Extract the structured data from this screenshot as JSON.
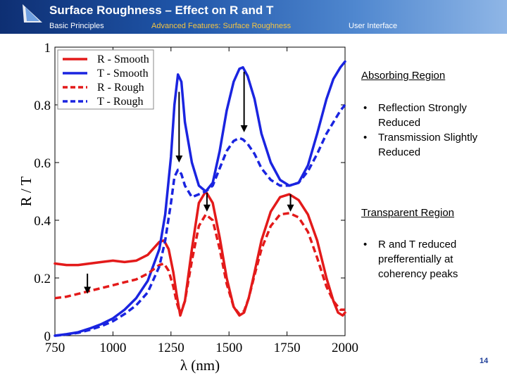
{
  "header": {
    "title": "Surface Roughness – Effect on R and T",
    "nav": [
      "Basic Principles",
      "Advanced Features: Surface Roughness",
      "User Interface"
    ]
  },
  "colors": {
    "red": "#e31a1a",
    "blue": "#1a24e0",
    "black": "#000000"
  },
  "chart_data": {
    "type": "line",
    "xlabel": "λ (nm)",
    "ylabel": "R / T",
    "xlim": [
      750,
      2000
    ],
    "ylim": [
      0,
      1
    ],
    "xticks": [
      "750",
      "1000",
      "1250",
      "1500",
      "1750",
      "2000"
    ],
    "yticks": [
      "0",
      "0.2",
      "0.4",
      "0.6",
      "0.8",
      "1"
    ],
    "legend": [
      {
        "label": "R - Smooth",
        "color": "#e31a1a",
        "dashed": false
      },
      {
        "label": "T - Smooth",
        "color": "#1a24e0",
        "dashed": false
      },
      {
        "label": "R - Rough",
        "color": "#e31a1a",
        "dashed": true
      },
      {
        "label": "T - Rough",
        "color": "#1a24e0",
        "dashed": true
      }
    ],
    "series": [
      {
        "name": "R - Smooth",
        "color": "#e31a1a",
        "dashed": false,
        "x": [
          750,
          800,
          850,
          900,
          950,
          1000,
          1050,
          1100,
          1150,
          1200,
          1220,
          1240,
          1260,
          1275,
          1290,
          1310,
          1340,
          1370,
          1400,
          1430,
          1460,
          1490,
          1520,
          1545,
          1565,
          1585,
          1610,
          1640,
          1680,
          1720,
          1760,
          1800,
          1840,
          1880,
          1920,
          1950,
          1970,
          1990,
          2000
        ],
        "y": [
          0.25,
          0.245,
          0.245,
          0.25,
          0.255,
          0.26,
          0.255,
          0.26,
          0.28,
          0.325,
          0.33,
          0.3,
          0.22,
          0.14,
          0.07,
          0.12,
          0.3,
          0.46,
          0.5,
          0.46,
          0.34,
          0.2,
          0.1,
          0.07,
          0.08,
          0.13,
          0.22,
          0.33,
          0.43,
          0.48,
          0.49,
          0.47,
          0.42,
          0.33,
          0.2,
          0.12,
          0.08,
          0.07,
          0.08
        ]
      },
      {
        "name": "T - Smooth",
        "color": "#1a24e0",
        "dashed": false,
        "x": [
          750,
          800,
          850,
          900,
          950,
          1000,
          1050,
          1100,
          1150,
          1200,
          1225,
          1250,
          1265,
          1280,
          1295,
          1310,
          1340,
          1370,
          1400,
          1430,
          1460,
          1490,
          1520,
          1545,
          1560,
          1580,
          1610,
          1640,
          1680,
          1720,
          1760,
          1800,
          1840,
          1880,
          1920,
          1950,
          1980,
          2000
        ],
        "y": [
          0,
          0.005,
          0.012,
          0.025,
          0.04,
          0.06,
          0.09,
          0.13,
          0.19,
          0.3,
          0.42,
          0.62,
          0.8,
          0.905,
          0.88,
          0.74,
          0.6,
          0.52,
          0.5,
          0.53,
          0.64,
          0.78,
          0.88,
          0.925,
          0.93,
          0.9,
          0.82,
          0.7,
          0.6,
          0.54,
          0.52,
          0.53,
          0.59,
          0.7,
          0.82,
          0.89,
          0.93,
          0.95
        ]
      },
      {
        "name": "R - Rough",
        "color": "#e31a1a",
        "dashed": true,
        "x": [
          750,
          800,
          850,
          900,
          950,
          1000,
          1050,
          1100,
          1150,
          1200,
          1220,
          1240,
          1260,
          1275,
          1290,
          1310,
          1340,
          1370,
          1400,
          1430,
          1460,
          1490,
          1520,
          1545,
          1565,
          1585,
          1610,
          1640,
          1680,
          1720,
          1760,
          1800,
          1840,
          1880,
          1920,
          1950,
          1980,
          2000
        ],
        "y": [
          0.13,
          0.135,
          0.145,
          0.155,
          0.165,
          0.175,
          0.185,
          0.195,
          0.215,
          0.245,
          0.25,
          0.225,
          0.17,
          0.115,
          0.075,
          0.12,
          0.26,
          0.38,
          0.42,
          0.4,
          0.3,
          0.18,
          0.1,
          0.075,
          0.085,
          0.13,
          0.21,
          0.3,
          0.38,
          0.42,
          0.425,
          0.41,
          0.36,
          0.27,
          0.17,
          0.12,
          0.09,
          0.09
        ]
      },
      {
        "name": "T - Rough",
        "color": "#1a24e0",
        "dashed": true,
        "x": [
          750,
          800,
          850,
          900,
          950,
          1000,
          1050,
          1100,
          1150,
          1200,
          1225,
          1250,
          1265,
          1280,
          1295,
          1310,
          1340,
          1370,
          1400,
          1430,
          1460,
          1490,
          1520,
          1545,
          1560,
          1580,
          1610,
          1640,
          1680,
          1720,
          1760,
          1800,
          1840,
          1880,
          1920,
          1950,
          1980,
          2000
        ],
        "y": [
          0,
          0.004,
          0.01,
          0.02,
          0.033,
          0.05,
          0.075,
          0.105,
          0.15,
          0.24,
          0.33,
          0.46,
          0.55,
          0.575,
          0.56,
          0.52,
          0.48,
          0.49,
          0.5,
          0.52,
          0.58,
          0.64,
          0.675,
          0.685,
          0.68,
          0.665,
          0.63,
          0.58,
          0.54,
          0.52,
          0.52,
          0.53,
          0.57,
          0.63,
          0.7,
          0.74,
          0.78,
          0.8
        ]
      }
    ],
    "arrows": [
      {
        "x": 890,
        "y_from": 0.215,
        "y_to": 0.145
      },
      {
        "x": 1285,
        "y_from": 0.845,
        "y_to": 0.6
      },
      {
        "x": 1565,
        "y_from": 0.915,
        "y_to": 0.705
      },
      {
        "x": 1405,
        "y_from": 0.495,
        "y_to": 0.43
      },
      {
        "x": 1765,
        "y_from": 0.49,
        "y_to": 0.43
      }
    ]
  },
  "right_panel": {
    "absorbing_heading": "Absorbing Region",
    "absorbing_items": [
      "Reflection Strongly Reduced",
      "Transmission Slightly Reduced"
    ],
    "transparent_heading": "Transparent Region",
    "transparent_items": [
      "R and T reduced prefferentially at coherency peaks"
    ]
  },
  "page_number": "14"
}
